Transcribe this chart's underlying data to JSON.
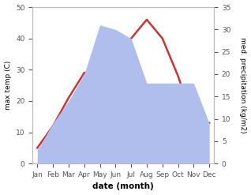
{
  "months": [
    "Jan",
    "Feb",
    "Mar",
    "Apr",
    "May",
    "Jun",
    "Jul",
    "Aug",
    "Sep",
    "Oct",
    "Nov",
    "Dec"
  ],
  "temp_max": [
    5,
    12,
    21,
    29,
    30,
    35,
    40,
    46,
    40,
    28,
    13,
    13
  ],
  "precipitation": [
    3,
    9,
    14,
    20,
    31,
    30,
    28,
    18,
    18,
    18,
    18,
    9
  ],
  "temp_ylim": [
    0,
    50
  ],
  "precip_ylim": [
    0,
    35
  ],
  "temp_color": "#cc3333",
  "precip_fill_color": "#b0beed",
  "left_ylabel": "max temp (C)",
  "right_ylabel": "med. precipitation (kg/m2)",
  "xlabel": "date (month)",
  "label_fontsize": 7,
  "tick_fontsize": 6.5,
  "line_width": 1.8,
  "background_color": "#ffffff"
}
